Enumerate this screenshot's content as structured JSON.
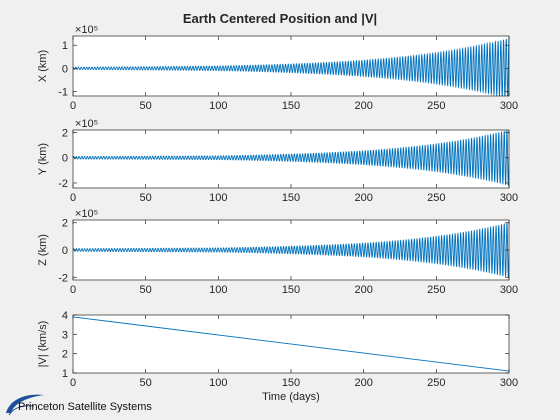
{
  "figure": {
    "title": "Earth Centered Position and |V|",
    "background": "#f0f0f0",
    "axes_background": "#ffffff",
    "line_color": "#0072bd"
  },
  "logo": {
    "text": "Princeton Satellite Systems",
    "color": "#1f4e9a"
  },
  "chart_data": [
    {
      "type": "line",
      "title": "Earth Centered Position and |V|",
      "ylabel": "X (km)",
      "xlabel": "",
      "exponent": "×10⁵",
      "xlim": [
        0,
        300
      ],
      "ylim": [
        -1.2,
        1.4
      ],
      "xticks": [
        0,
        50,
        100,
        150,
        200,
        250,
        300
      ],
      "yticks": [
        -1,
        0,
        1
      ],
      "grid": false,
      "series": [
        {
          "kind": "growing_oscillation",
          "amplitude_at_x": [
            [
              0,
              0.05
            ],
            [
              100,
              0.1
            ],
            [
              200,
              0.35
            ],
            [
              300,
              1.3
            ]
          ],
          "start_phase": "peak",
          "cycles": 160,
          "units": "×10⁵ km"
        }
      ]
    },
    {
      "type": "line",
      "ylabel": "Y (km)",
      "xlabel": "",
      "exponent": "×10⁵",
      "xlim": [
        0,
        300
      ],
      "ylim": [
        -2.4,
        2.2
      ],
      "xticks": [
        0,
        50,
        100,
        150,
        200,
        250,
        300
      ],
      "yticks": [
        -2,
        0,
        2
      ],
      "grid": false,
      "series": [
        {
          "kind": "growing_oscillation",
          "amplitude_at_x": [
            [
              0,
              0.1
            ],
            [
              100,
              0.15
            ],
            [
              200,
              0.55
            ],
            [
              300,
              2.2
            ]
          ],
          "start_phase": "zero",
          "cycles": 160,
          "units": "×10⁵ km"
        }
      ]
    },
    {
      "type": "line",
      "ylabel": "Z (km)",
      "xlabel": "",
      "exponent": "×10⁵",
      "xlim": [
        0,
        300
      ],
      "ylim": [
        -2.2,
        2.2
      ],
      "xticks": [
        0,
        50,
        100,
        150,
        200,
        250,
        300
      ],
      "yticks": [
        -2,
        0,
        2
      ],
      "grid": false,
      "series": [
        {
          "kind": "growing_oscillation",
          "amplitude_at_x": [
            [
              0,
              0.1
            ],
            [
              100,
              0.15
            ],
            [
              200,
              0.5
            ],
            [
              300,
              2.0
            ]
          ],
          "start_phase": "zero",
          "cycles": 160,
          "units": "×10⁵ km"
        }
      ]
    },
    {
      "type": "line",
      "ylabel": "|V| (km/s)",
      "xlabel": "Time (days)",
      "exponent": "",
      "xlim": [
        0,
        300
      ],
      "ylim": [
        1,
        4
      ],
      "xticks": [
        0,
        50,
        100,
        150,
        200,
        250,
        300
      ],
      "yticks": [
        1,
        2,
        3,
        4
      ],
      "grid": false,
      "series": [
        {
          "kind": "line",
          "x": [
            0,
            300
          ],
          "y": [
            3.9,
            1.1
          ]
        }
      ]
    }
  ]
}
